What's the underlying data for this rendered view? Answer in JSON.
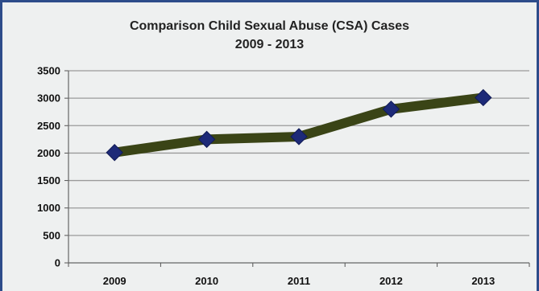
{
  "chart_data": {
    "type": "line",
    "title": "Comparison Child Sexual Abuse (CSA) Cases",
    "subtitle": "2009 - 2013",
    "xlabel": "",
    "ylabel": "",
    "categories": [
      "2009",
      "2010",
      "2011",
      "2012",
      "2013"
    ],
    "series": [
      {
        "values": [
          2010,
          2250,
          2300,
          2800,
          3010
        ]
      }
    ],
    "ylim": [
      0,
      3500
    ],
    "yticks": [
      0,
      500,
      1000,
      1500,
      2000,
      2500,
      3000,
      3500
    ],
    "grid": true,
    "legend": "none",
    "colors": {
      "line": "#3a4416",
      "marker": "#1d2a78"
    }
  }
}
